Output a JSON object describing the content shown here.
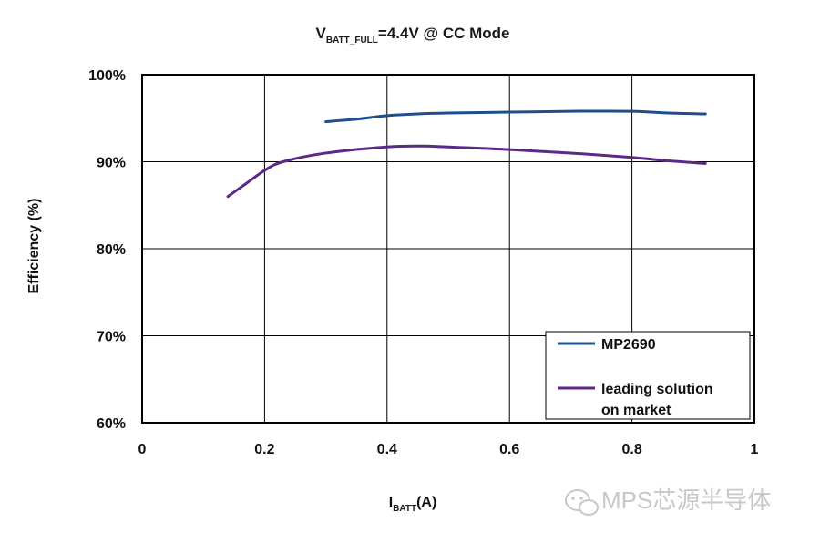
{
  "chart_data": {
    "type": "line",
    "title": {
      "main_prefix": "V",
      "subscript": "BATT_FULL",
      "main_suffix": "=4.4V @ CC Mode"
    },
    "xlabel": {
      "main": "I",
      "subscript": "BATT",
      "suffix": "(A)"
    },
    "ylabel": "Efficiency (%)",
    "xlim": [
      0,
      1
    ],
    "ylim": [
      60,
      100
    ],
    "x_ticks": [
      0,
      0.2,
      0.4,
      0.6,
      0.8,
      1
    ],
    "x_tick_labels": [
      "0",
      "0.2",
      "0.4",
      "0.6",
      "0.8",
      "1"
    ],
    "y_ticks": [
      60,
      70,
      80,
      90,
      100
    ],
    "y_tick_labels": [
      "60%",
      "70%",
      "80%",
      "90%",
      "100%"
    ],
    "grid": true,
    "legend": {
      "placement": "bottom-right",
      "entries": [
        {
          "lines": [
            "MP2690"
          ],
          "color": "#1f4e8c"
        },
        {
          "lines": [
            "leading solution",
            "on market"
          ],
          "color": "#5b2a86"
        }
      ]
    },
    "series": [
      {
        "name": "MP2690",
        "color": "#1f4e8c",
        "points": [
          [
            0.3,
            94.6
          ],
          [
            0.35,
            94.9
          ],
          [
            0.4,
            95.3
          ],
          [
            0.45,
            95.5
          ],
          [
            0.5,
            95.6
          ],
          [
            0.6,
            95.7
          ],
          [
            0.7,
            95.8
          ],
          [
            0.8,
            95.8
          ],
          [
            0.86,
            95.6
          ],
          [
            0.92,
            95.5
          ]
        ]
      },
      {
        "name": "leading solution on market",
        "color": "#5b2a86",
        "points": [
          [
            0.14,
            86.0
          ],
          [
            0.17,
            87.5
          ],
          [
            0.2,
            89.0
          ],
          [
            0.23,
            90.0
          ],
          [
            0.3,
            91.0
          ],
          [
            0.4,
            91.7
          ],
          [
            0.46,
            91.8
          ],
          [
            0.5,
            91.7
          ],
          [
            0.6,
            91.4
          ],
          [
            0.7,
            91.0
          ],
          [
            0.8,
            90.5
          ],
          [
            0.86,
            90.1
          ],
          [
            0.92,
            89.8
          ]
        ]
      }
    ]
  },
  "watermark": "MPS芯源半导体"
}
